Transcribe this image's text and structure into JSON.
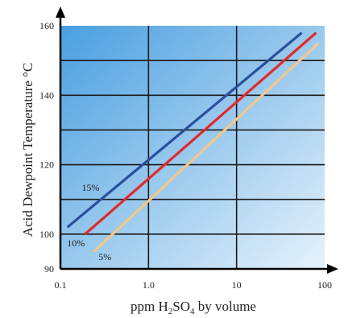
{
  "chart_data": {
    "type": "line",
    "x_scale": "log",
    "xlim": [
      0.1,
      100
    ],
    "ylim": [
      90,
      160
    ],
    "x_ticks": [
      "0.1",
      "1.0",
      "10",
      "100"
    ],
    "x_tick_values": [
      0.1,
      1,
      10,
      100
    ],
    "y_ticks": [
      "160",
      "140",
      "120",
      "100",
      "90"
    ],
    "y_tick_values": [
      160,
      140,
      120,
      100,
      90
    ],
    "xlabel": {
      "prefix": "ppm H",
      "sub1": "2",
      "mid": "SO",
      "sub2": "4",
      "suffix": " by volume"
    },
    "ylabel": "Acid Dewpoint Temperature °C",
    "grid": true,
    "background_colors": [
      "#4a9fe0",
      "#e6f2fb"
    ],
    "series": [
      {
        "name": "15%",
        "color": "#2b4f9e",
        "x": [
          0.12,
          55
        ],
        "y": [
          102,
          158
        ]
      },
      {
        "name": "10%",
        "color": "#e02a2a",
        "x": [
          0.19,
          80
        ],
        "y": [
          100,
          158
        ]
      },
      {
        "name": "5%",
        "color": "#f5c788",
        "x": [
          0.24,
          85
        ],
        "y": [
          95,
          155
        ]
      }
    ],
    "annotations": [
      {
        "text": "15%",
        "x": 0.22,
        "y": 112.5
      },
      {
        "text": "10%",
        "x": 0.15,
        "y": 96.5
      },
      {
        "text": "5%",
        "x": 0.32,
        "y": 92.5
      }
    ]
  }
}
